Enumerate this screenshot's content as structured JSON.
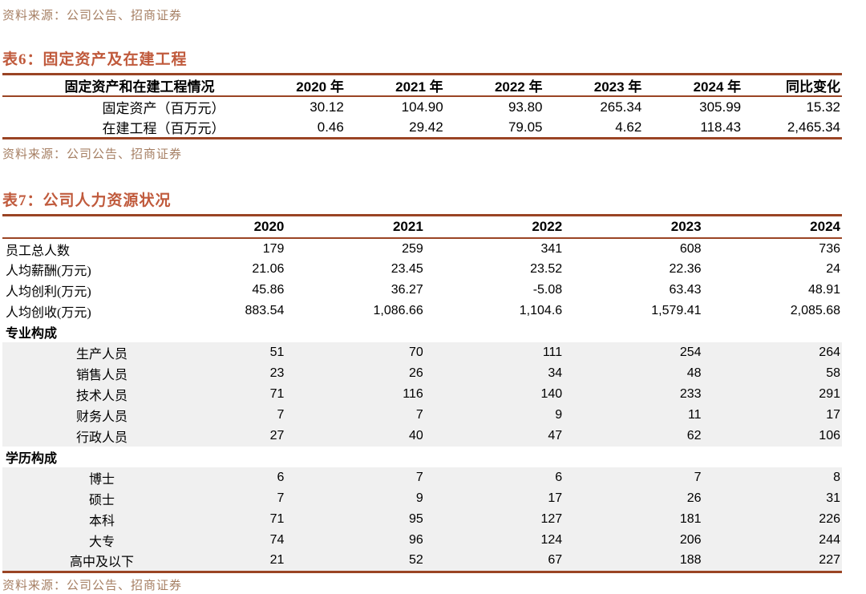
{
  "colors": {
    "title": "#c05a3c",
    "rule": "#9a4424",
    "source_text": "#a67f63",
    "shade": "#f0f0f0",
    "text": "#000000"
  },
  "page": {
    "source_note_top": "资料来源：公司公告、招商证券"
  },
  "table6": {
    "title": "表6：固定资产及在建工程",
    "columns": [
      "固定资产和在建工程情况",
      "2020 年",
      "2021 年",
      "2022 年",
      "2023 年",
      "2024 年",
      "同比变化"
    ],
    "rows": [
      {
        "label": "固定资产（百万元）",
        "values": [
          "30.12",
          "104.90",
          "93.80",
          "265.34",
          "305.99",
          "15.32"
        ]
      },
      {
        "label": "在建工程（百万元）",
        "values": [
          "0.46",
          "29.42",
          "79.05",
          "4.62",
          "118.43",
          "2,465.34"
        ]
      }
    ],
    "source": "资料来源：公司公告、招商证券"
  },
  "table7": {
    "title": "表7：公司人力资源状况",
    "columns": [
      "",
      "2020",
      "2021",
      "2022",
      "2023",
      "2024"
    ],
    "rows": [
      {
        "label": "员工总人数",
        "type": "data",
        "values": [
          "179",
          "259",
          "341",
          "608",
          "736"
        ]
      },
      {
        "label": "人均薪酬(万元)",
        "type": "data",
        "values": [
          "21.06",
          "23.45",
          "23.52",
          "22.36",
          "24"
        ]
      },
      {
        "label": "人均创利(万元)",
        "type": "data",
        "values": [
          "45.86",
          "36.27",
          "-5.08",
          "63.43",
          "48.91"
        ]
      },
      {
        "label": "人均创收(万元)",
        "type": "data",
        "values": [
          "883.54",
          "1,086.66",
          "1,104.6",
          "1,579.41",
          "2,085.68"
        ]
      },
      {
        "label": "专业构成",
        "type": "section",
        "values": [
          "",
          "",
          "",
          "",
          ""
        ]
      },
      {
        "label": "生产人员",
        "type": "sub",
        "values": [
          "51",
          "70",
          "111",
          "254",
          "264"
        ]
      },
      {
        "label": "销售人员",
        "type": "sub",
        "values": [
          "23",
          "26",
          "34",
          "48",
          "58"
        ]
      },
      {
        "label": "技术人员",
        "type": "sub",
        "values": [
          "71",
          "116",
          "140",
          "233",
          "291"
        ]
      },
      {
        "label": "财务人员",
        "type": "sub",
        "values": [
          "7",
          "7",
          "9",
          "11",
          "17"
        ]
      },
      {
        "label": "行政人员",
        "type": "sub",
        "values": [
          "27",
          "40",
          "47",
          "62",
          "106"
        ]
      },
      {
        "label": "学历构成",
        "type": "section",
        "values": [
          "",
          "",
          "",
          "",
          ""
        ]
      },
      {
        "label": "博士",
        "type": "sub",
        "values": [
          "6",
          "7",
          "6",
          "7",
          "8"
        ]
      },
      {
        "label": "硕士",
        "type": "sub",
        "values": [
          "7",
          "9",
          "17",
          "26",
          "31"
        ]
      },
      {
        "label": "本科",
        "type": "sub",
        "values": [
          "71",
          "95",
          "127",
          "181",
          "226"
        ]
      },
      {
        "label": "大专",
        "type": "sub",
        "values": [
          "74",
          "96",
          "124",
          "206",
          "244"
        ]
      },
      {
        "label": "高中及以下",
        "type": "sub",
        "values": [
          "21",
          "52",
          "67",
          "188",
          "227"
        ]
      }
    ],
    "source": "资料来源：公司公告、招商证券"
  }
}
